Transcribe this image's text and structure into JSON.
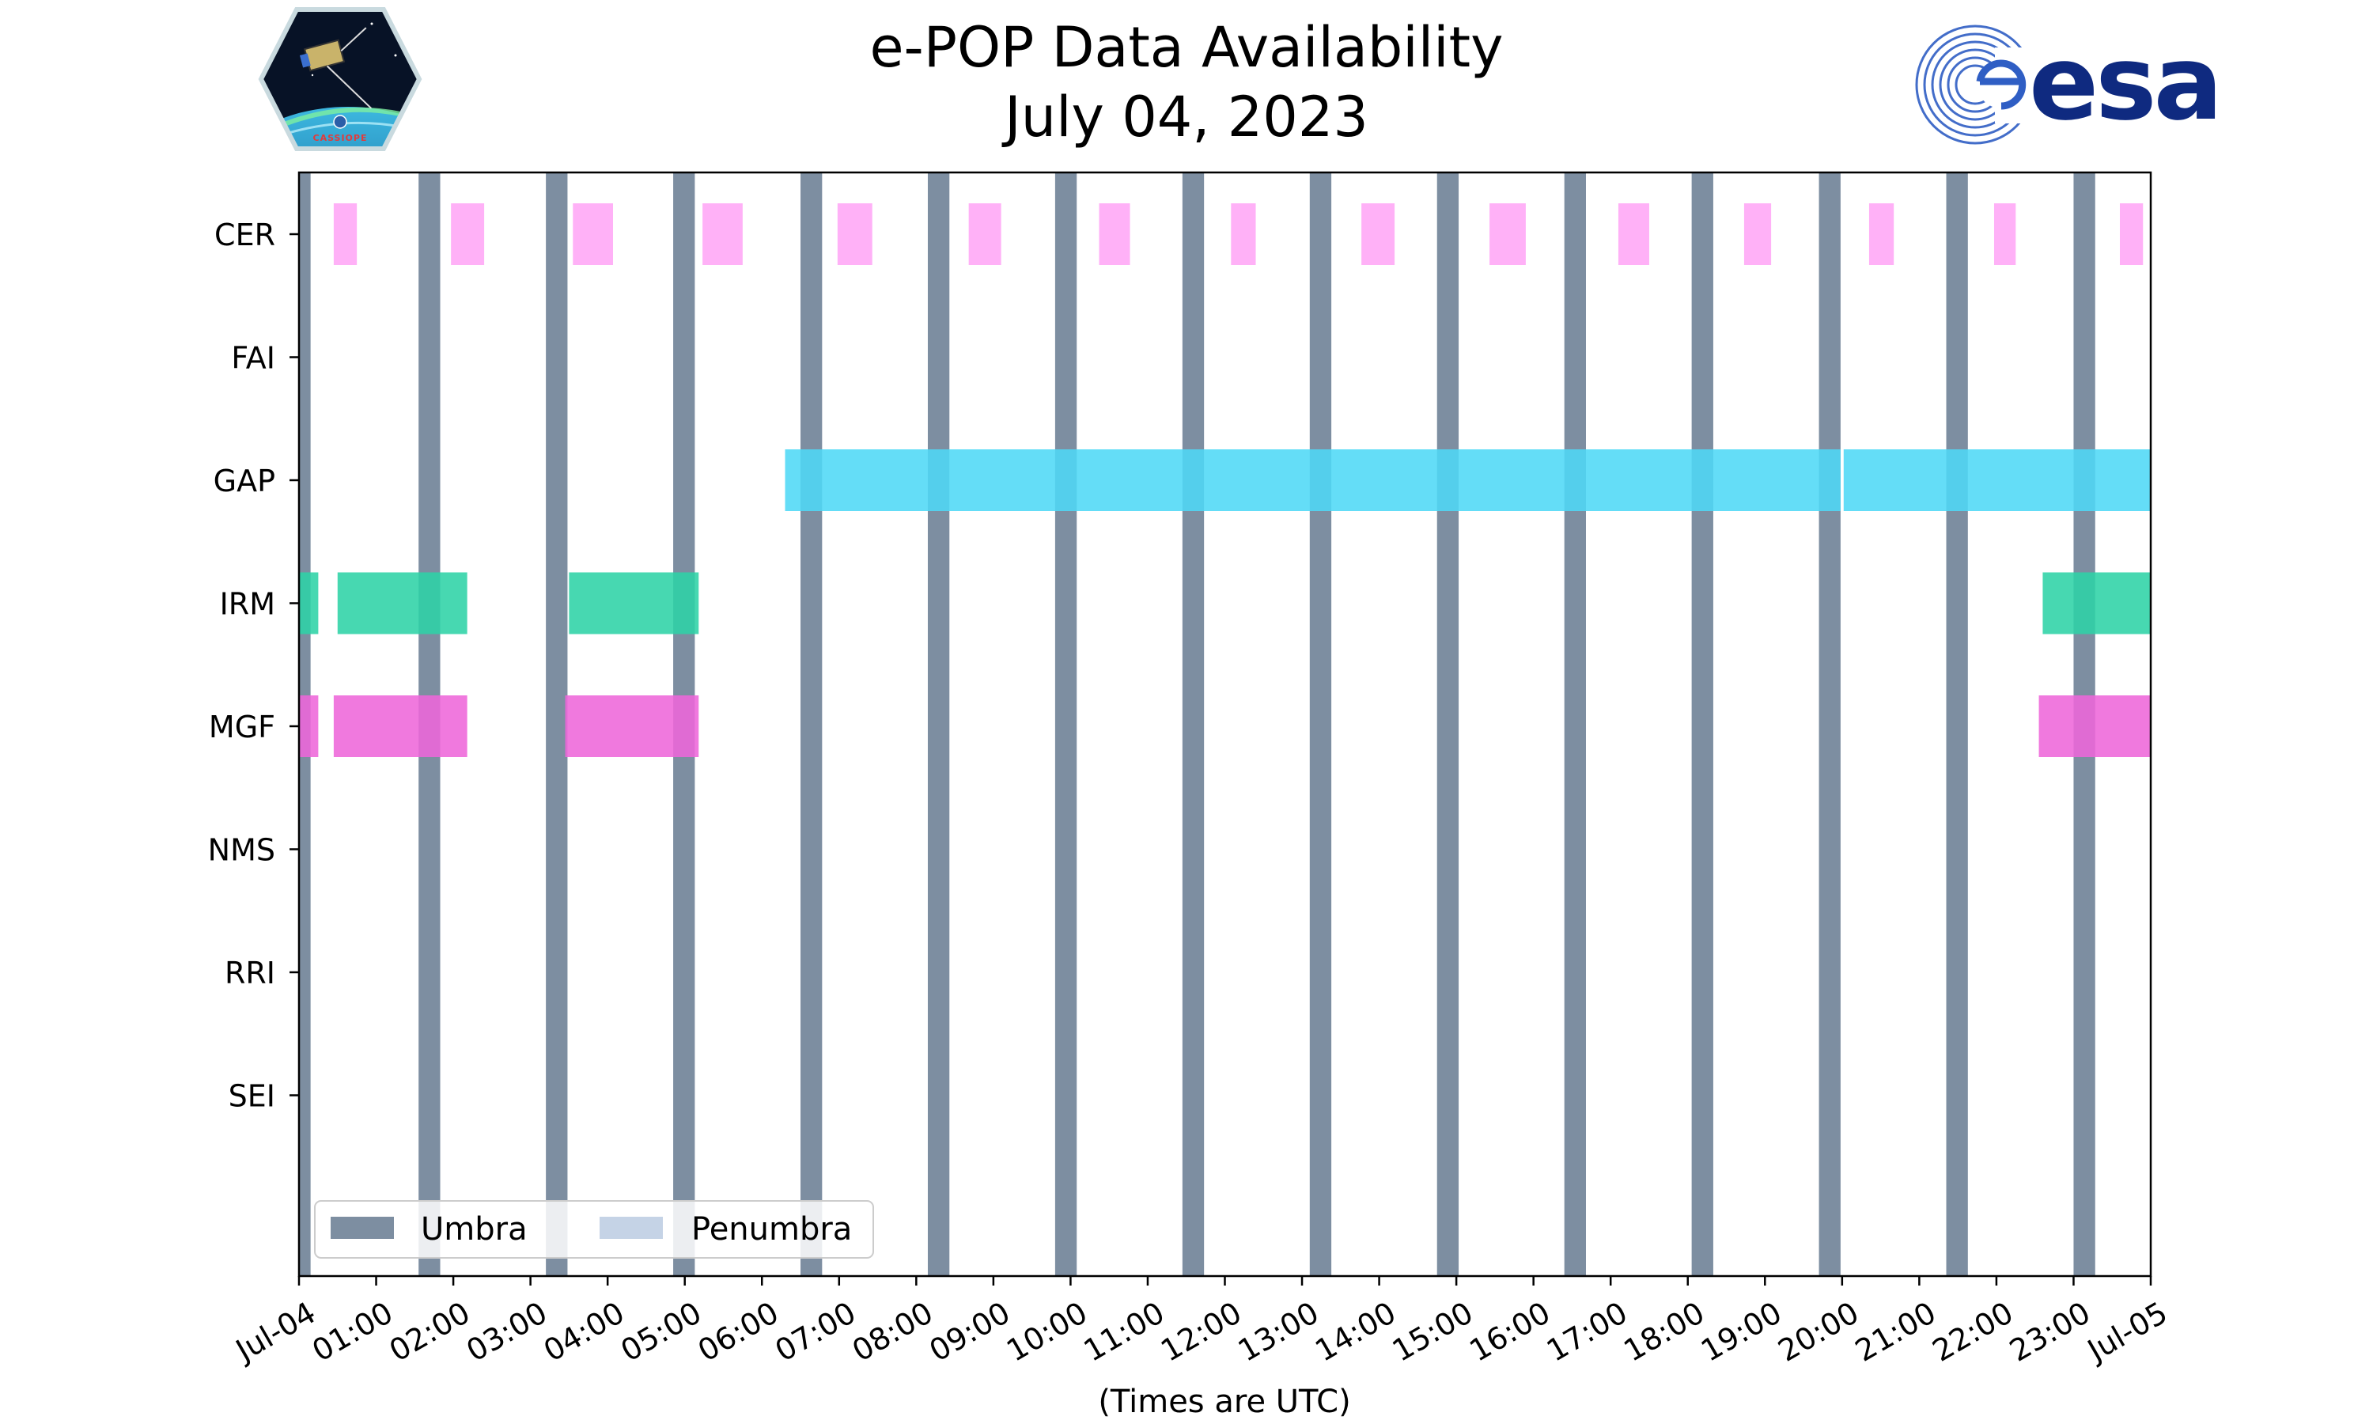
{
  "chart_data": {
    "type": "timeline",
    "title": "e-POP Data Availability",
    "subtitle": "July 04, 2023",
    "xlabel": "(Times are UTC)",
    "x_unit": "hours",
    "xlim": [
      0,
      24
    ],
    "xticks": [
      {
        "hour": 0,
        "label": "Jul-04"
      },
      {
        "hour": 1,
        "label": "01:00"
      },
      {
        "hour": 2,
        "label": "02:00"
      },
      {
        "hour": 3,
        "label": "03:00"
      },
      {
        "hour": 4,
        "label": "04:00"
      },
      {
        "hour": 5,
        "label": "05:00"
      },
      {
        "hour": 6,
        "label": "06:00"
      },
      {
        "hour": 7,
        "label": "07:00"
      },
      {
        "hour": 8,
        "label": "08:00"
      },
      {
        "hour": 9,
        "label": "09:00"
      },
      {
        "hour": 10,
        "label": "10:00"
      },
      {
        "hour": 11,
        "label": "11:00"
      },
      {
        "hour": 12,
        "label": "12:00"
      },
      {
        "hour": 13,
        "label": "13:00"
      },
      {
        "hour": 14,
        "label": "14:00"
      },
      {
        "hour": 15,
        "label": "15:00"
      },
      {
        "hour": 16,
        "label": "16:00"
      },
      {
        "hour": 17,
        "label": "17:00"
      },
      {
        "hour": 18,
        "label": "18:00"
      },
      {
        "hour": 19,
        "label": "19:00"
      },
      {
        "hour": 20,
        "label": "20:00"
      },
      {
        "hour": 21,
        "label": "21:00"
      },
      {
        "hour": 22,
        "label": "22:00"
      },
      {
        "hour": 23,
        "label": "23:00"
      },
      {
        "hour": 24,
        "label": "Jul-05"
      }
    ],
    "instruments": [
      "CER",
      "FAI",
      "GAP",
      "IRM",
      "MGF",
      "NMS",
      "RRI",
      "SEI"
    ],
    "series": [
      {
        "name": "CER",
        "color": "#ffa6f6",
        "intervals": [
          [
            0.45,
            0.75
          ],
          [
            1.97,
            2.4
          ],
          [
            3.55,
            4.07
          ],
          [
            5.23,
            5.75
          ],
          [
            6.98,
            7.43
          ],
          [
            8.68,
            9.1
          ],
          [
            10.37,
            10.77
          ],
          [
            12.08,
            12.4
          ],
          [
            13.77,
            14.2
          ],
          [
            15.43,
            15.9
          ],
          [
            17.1,
            17.5
          ],
          [
            18.73,
            19.08
          ],
          [
            20.35,
            20.67
          ],
          [
            21.97,
            22.25
          ],
          [
            23.6,
            23.9
          ]
        ]
      },
      {
        "name": "FAI",
        "color": "#ff9e3d",
        "intervals": []
      },
      {
        "name": "GAP",
        "color": "#4fd8f6",
        "intervals": [
          [
            6.3,
            19.98
          ],
          [
            20.02,
            24.0
          ]
        ]
      },
      {
        "name": "IRM",
        "color": "#2ed3a6",
        "intervals": [
          [
            0.0,
            0.25
          ],
          [
            0.5,
            2.18
          ],
          [
            3.5,
            5.18
          ],
          [
            22.6,
            24.0
          ]
        ]
      },
      {
        "name": "MGF",
        "color": "#ee66da",
        "intervals": [
          [
            0.0,
            0.25
          ],
          [
            0.45,
            2.18
          ],
          [
            3.45,
            5.18
          ],
          [
            22.55,
            24.0
          ]
        ]
      },
      {
        "name": "NMS",
        "color": "#9aa0ff",
        "intervals": []
      },
      {
        "name": "RRI",
        "color": "#ffd24d",
        "intervals": []
      },
      {
        "name": "SEI",
        "color": "#7fd27f",
        "intervals": []
      }
    ],
    "umbra": {
      "label": "Umbra",
      "color": "#7d8ea1",
      "intervals": [
        [
          0.0,
          0.15
        ],
        [
          1.55,
          1.83
        ],
        [
          3.2,
          3.48
        ],
        [
          4.85,
          5.13
        ],
        [
          6.5,
          6.78
        ],
        [
          8.15,
          8.43
        ],
        [
          9.8,
          10.08
        ],
        [
          11.45,
          11.73
        ],
        [
          13.1,
          13.38
        ],
        [
          14.75,
          15.03
        ],
        [
          16.4,
          16.68
        ],
        [
          18.05,
          18.33
        ],
        [
          19.7,
          19.98
        ],
        [
          21.35,
          21.63
        ],
        [
          23.0,
          23.28
        ]
      ]
    },
    "penumbra": {
      "label": "Penumbra",
      "color": "#c5d3e6",
      "intervals": []
    },
    "legend_position": "lower-left"
  },
  "logos": {
    "left": {
      "name": "CASSIOPE mission patch",
      "text": "CASSIOPE"
    },
    "right": {
      "name": "ESA logo",
      "text": "esa",
      "color": "#0f2a80"
    }
  }
}
